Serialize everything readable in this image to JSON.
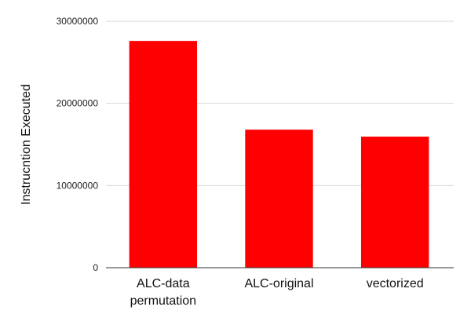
{
  "chart_data": {
    "type": "bar",
    "categories": [
      "ALC-data permutation",
      "ALC-original",
      "vectorized"
    ],
    "category_lines": [
      [
        "ALC-data",
        "permutation"
      ],
      [
        "ALC-original"
      ],
      [
        "vectorized"
      ]
    ],
    "values": [
      27600000,
      16800000,
      15950000
    ],
    "ylabel": "Instrucntion Executed",
    "ylim": [
      0,
      30000000
    ],
    "yticks": [
      0,
      10000000,
      20000000,
      30000000
    ],
    "ytick_labels": [
      "0",
      "10000000",
      "20000000",
      "30000000"
    ],
    "bar_color": "#ff0000",
    "grid": true,
    "legend": "none"
  }
}
